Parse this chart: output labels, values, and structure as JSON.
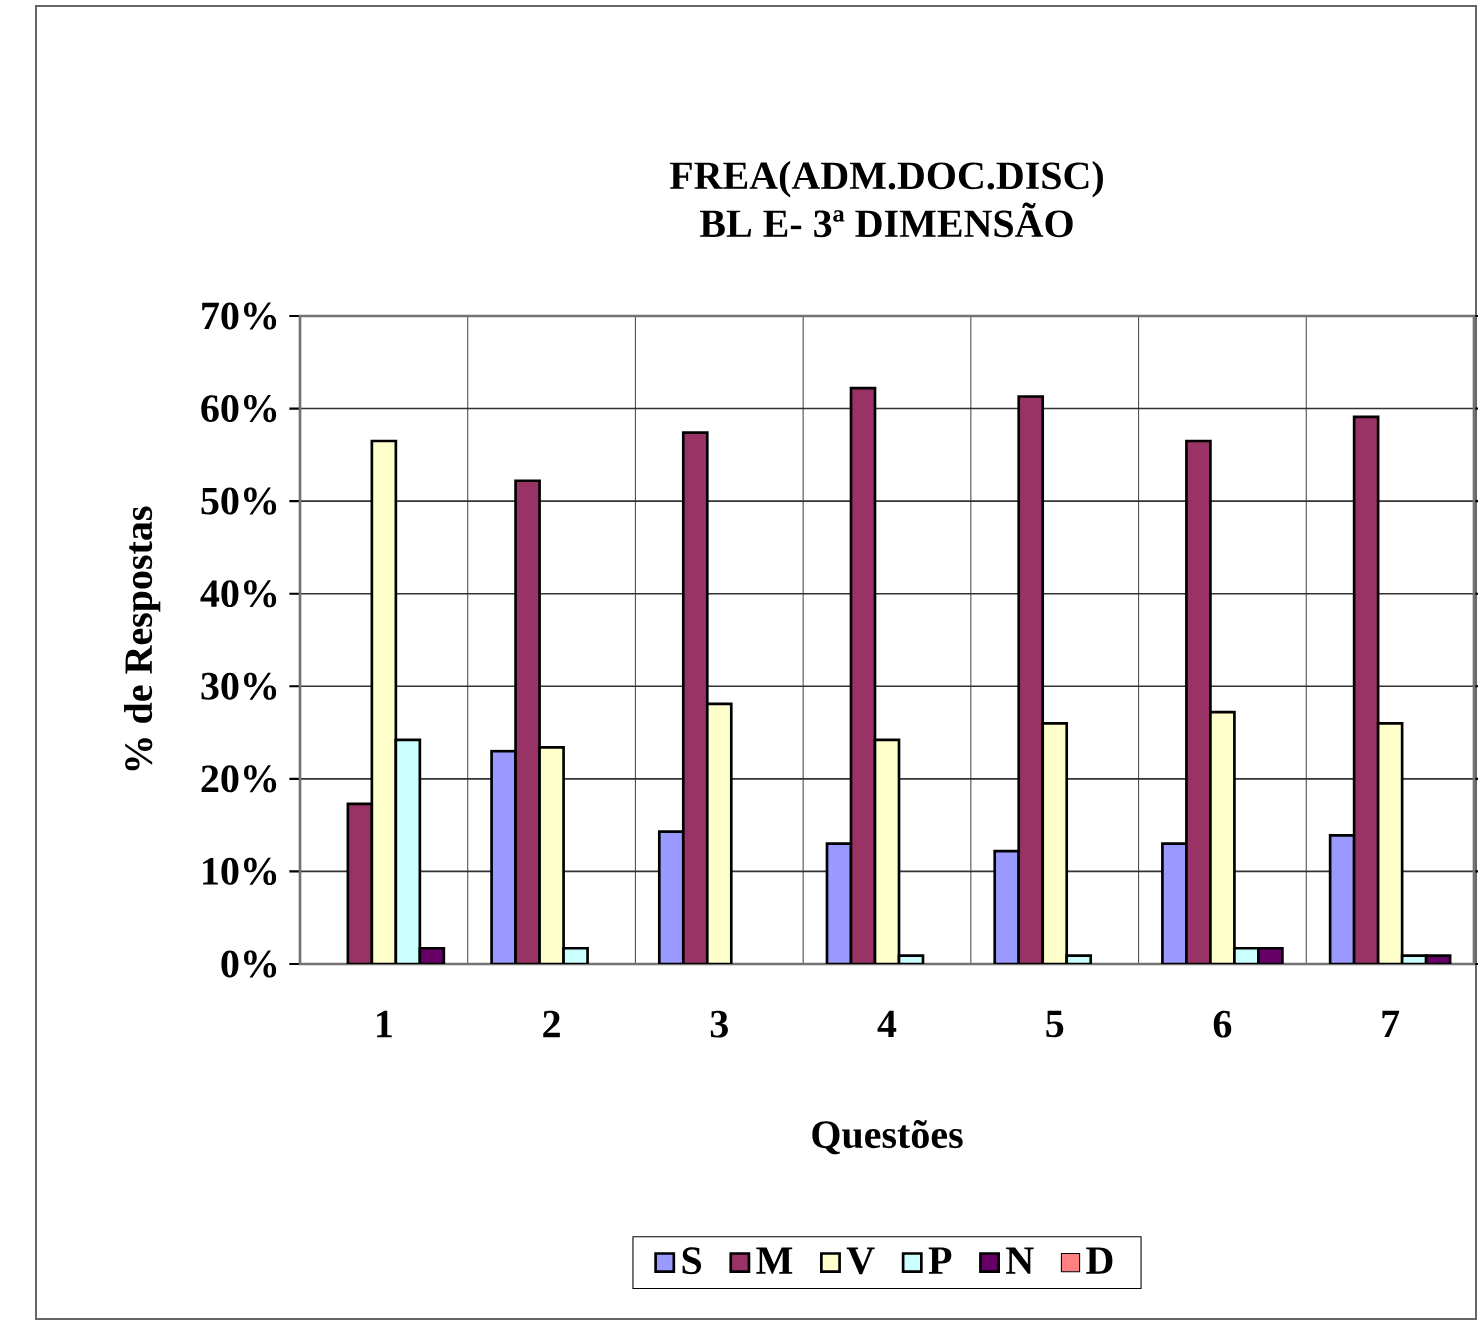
{
  "chart_data": {
    "type": "bar",
    "title": "FREA(ADM.DOC.DISC)",
    "subtitle": "BL E- 3ª DIMENSÃO",
    "xlabel": "Questões",
    "ylabel": "% de Respostas",
    "categories": [
      "1",
      "2",
      "3",
      "4",
      "5",
      "6",
      "7"
    ],
    "series": [
      {
        "name": "S",
        "color": "#9999ff",
        "values": [
          0,
          23,
          14.3,
          13,
          12.2,
          13,
          13.9
        ]
      },
      {
        "name": "M",
        "color": "#993366",
        "values": [
          17.3,
          52.2,
          57.4,
          62.2,
          61.3,
          56.5,
          59.1
        ]
      },
      {
        "name": "V",
        "color": "#ffffcc",
        "values": [
          56.5,
          23.4,
          28.1,
          24.2,
          26,
          27.2,
          26
        ]
      },
      {
        "name": "P",
        "color": "#ccffff",
        "values": [
          24.2,
          1.7,
          0,
          0.9,
          0.9,
          1.7,
          0.9
        ]
      },
      {
        "name": "N",
        "color": "#660066",
        "values": [
          1.7,
          0,
          0,
          0,
          0,
          1.7,
          0.9
        ]
      },
      {
        "name": "D",
        "color": "#ff8080",
        "values": [
          0,
          0,
          0,
          0,
          0,
          0,
          0
        ]
      }
    ],
    "ylim": [
      0,
      70
    ],
    "yticks": [
      {
        "value": 0,
        "label": "0%"
      },
      {
        "value": 10,
        "label": "10%"
      },
      {
        "value": 20,
        "label": "20%"
      },
      {
        "value": 30,
        "label": "30%"
      },
      {
        "value": 40,
        "label": "40%"
      },
      {
        "value": 50,
        "label": "50%"
      },
      {
        "value": 60,
        "label": "60%"
      },
      {
        "value": 70,
        "label": "70%"
      }
    ],
    "grid": true,
    "legend": "bottom"
  }
}
